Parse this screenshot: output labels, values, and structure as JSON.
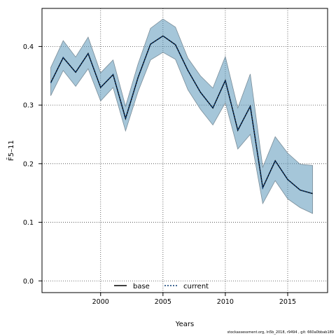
{
  "chart_data": {
    "type": "line",
    "title": "",
    "xlabel": "Years",
    "ylabel": "F̄5–11",
    "xlim": [
      1995.3,
      2018.2
    ],
    "ylim": [
      -0.02,
      0.465
    ],
    "x_ticks": [
      2000,
      2005,
      2010,
      2015
    ],
    "y_ticks": [
      0.0,
      0.1,
      0.2,
      0.3,
      0.4
    ],
    "y_tick_labels": [
      "0.0",
      "0.1",
      "0.2",
      "0.3",
      "0.4"
    ],
    "grid": true,
    "legend_position": "bottom-center",
    "x": [
      1996,
      1997,
      1998,
      1999,
      2000,
      2001,
      2002,
      2003,
      2004,
      2005,
      2006,
      2007,
      2008,
      2009,
      2010,
      2011,
      2012,
      2013,
      2014,
      2015,
      2016,
      2017
    ],
    "series": [
      {
        "name": "base",
        "color": "#000000",
        "style": "solid",
        "values": [
          0.338,
          0.381,
          0.356,
          0.388,
          0.33,
          0.352,
          0.277,
          0.347,
          0.404,
          0.418,
          0.403,
          0.359,
          0.322,
          0.295,
          0.342,
          0.257,
          0.298,
          0.159,
          0.205,
          0.173,
          0.155,
          0.149
        ]
      },
      {
        "name": "current",
        "color": "#0a3b73",
        "style": "dotted",
        "values": [
          0.338,
          0.381,
          0.356,
          0.388,
          0.33,
          0.352,
          0.277,
          0.347,
          0.404,
          0.418,
          0.403,
          0.359,
          0.322,
          0.295,
          0.342,
          0.257,
          0.298,
          0.159,
          0.205,
          0.173,
          0.155,
          0.149
        ]
      }
    ],
    "band": {
      "color": "#5b97b9",
      "upper": [
        0.364,
        0.41,
        0.382,
        0.416,
        0.355,
        0.377,
        0.298,
        0.37,
        0.431,
        0.447,
        0.433,
        0.38,
        0.35,
        0.329,
        0.383,
        0.295,
        0.353,
        0.194,
        0.246,
        0.218,
        0.199,
        0.197
      ],
      "lower": [
        0.316,
        0.359,
        0.332,
        0.362,
        0.307,
        0.33,
        0.256,
        0.323,
        0.377,
        0.39,
        0.378,
        0.326,
        0.293,
        0.266,
        0.304,
        0.225,
        0.25,
        0.132,
        0.171,
        0.14,
        0.125,
        0.115
      ]
    }
  },
  "footer": {
    "text": "stockassessment.org, ln5b_2018, r9494 , git: 660a0bbab189"
  }
}
